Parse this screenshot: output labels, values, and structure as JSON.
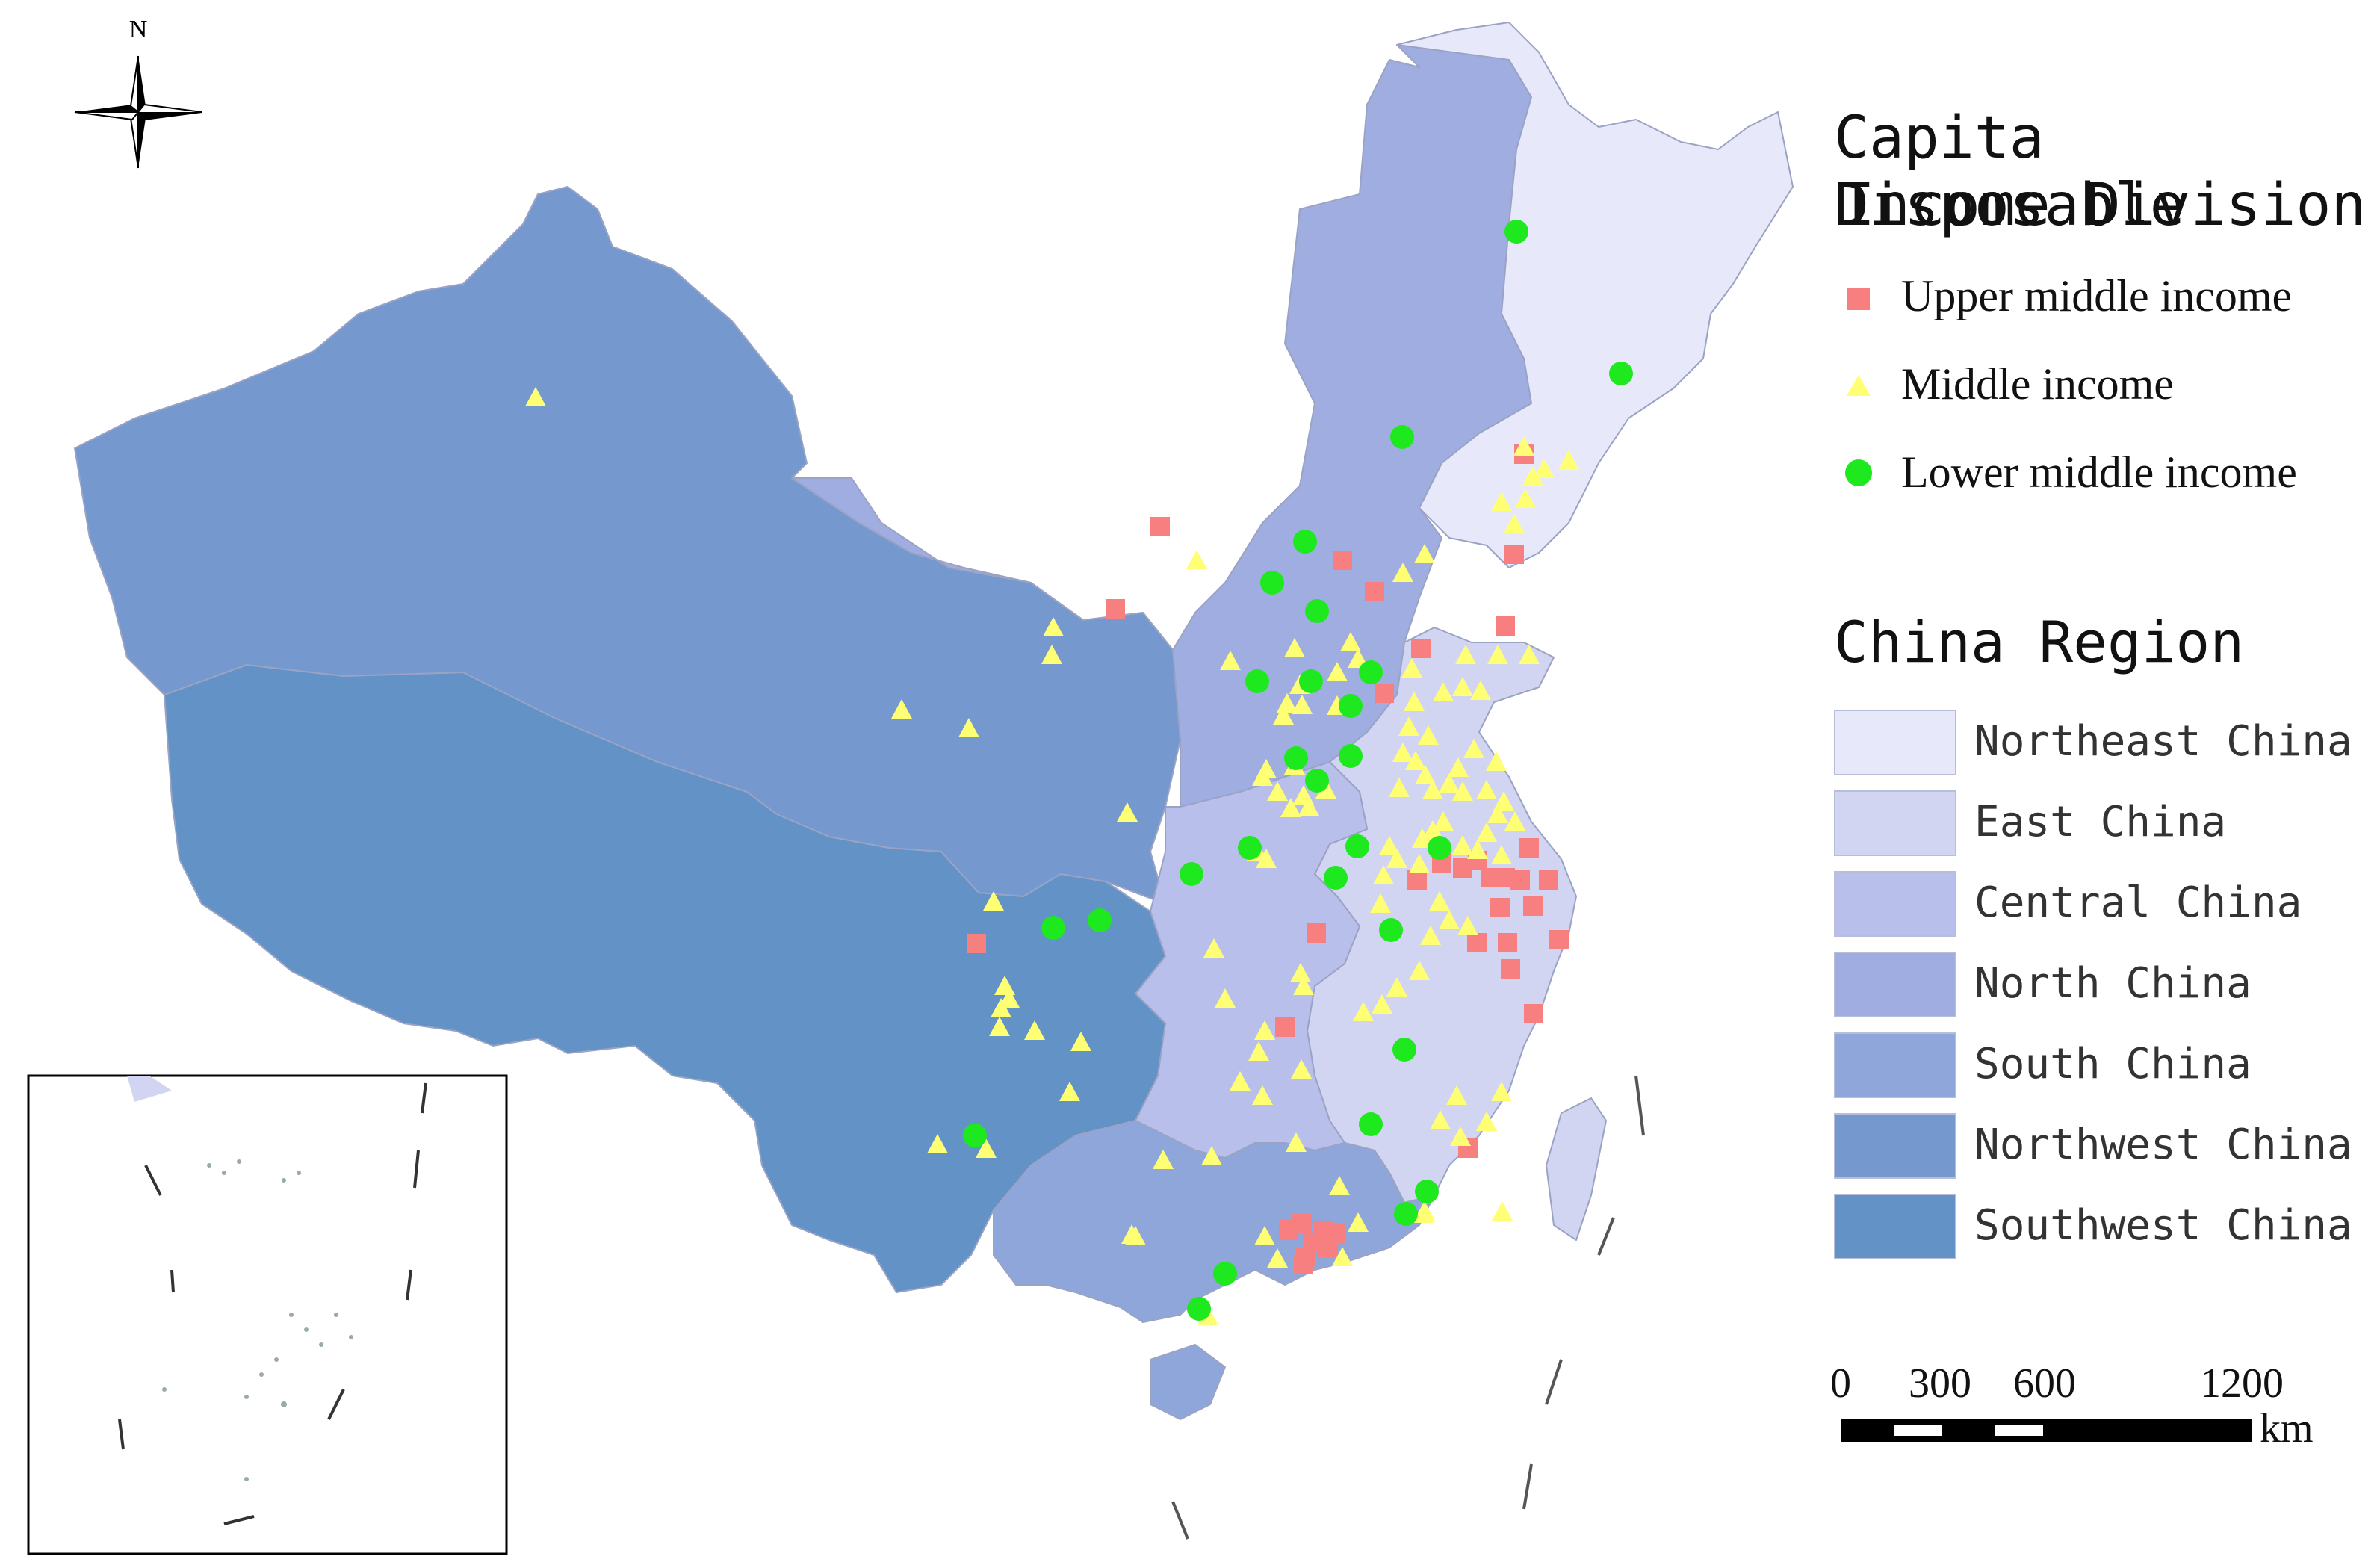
{
  "compass": {
    "label": "N"
  },
  "legend": {
    "income_title_line1": "Capita Disposable",
    "income_title_line2": "Income Division",
    "income_items": [
      {
        "label": "Upper middle income",
        "symbol": "square",
        "color": "#f77f7f"
      },
      {
        "label": "Middle income",
        "symbol": "triangle",
        "color": "#ffff73"
      },
      {
        "label": "Lower middle income",
        "symbol": "circle",
        "color": "#1ee81e"
      }
    ],
    "region_title": "China Region",
    "region_items": [
      {
        "label": "Northeast China",
        "color": "#e7e9fb"
      },
      {
        "label": "East China",
        "color": "#d2d5f2"
      },
      {
        "label": "Central China",
        "color": "#b9bfeb"
      },
      {
        "label": "North China",
        "color": "#a0ade1"
      },
      {
        "label": "South China",
        "color": "#8fa6da"
      },
      {
        "label": "Northwest China",
        "color": "#7599cf"
      },
      {
        "label": "Southwest China",
        "color": "#6292c6"
      }
    ]
  },
  "scale_bar": {
    "labels": [
      "0",
      "300",
      "600",
      "1200"
    ],
    "unit": "km"
  }
}
